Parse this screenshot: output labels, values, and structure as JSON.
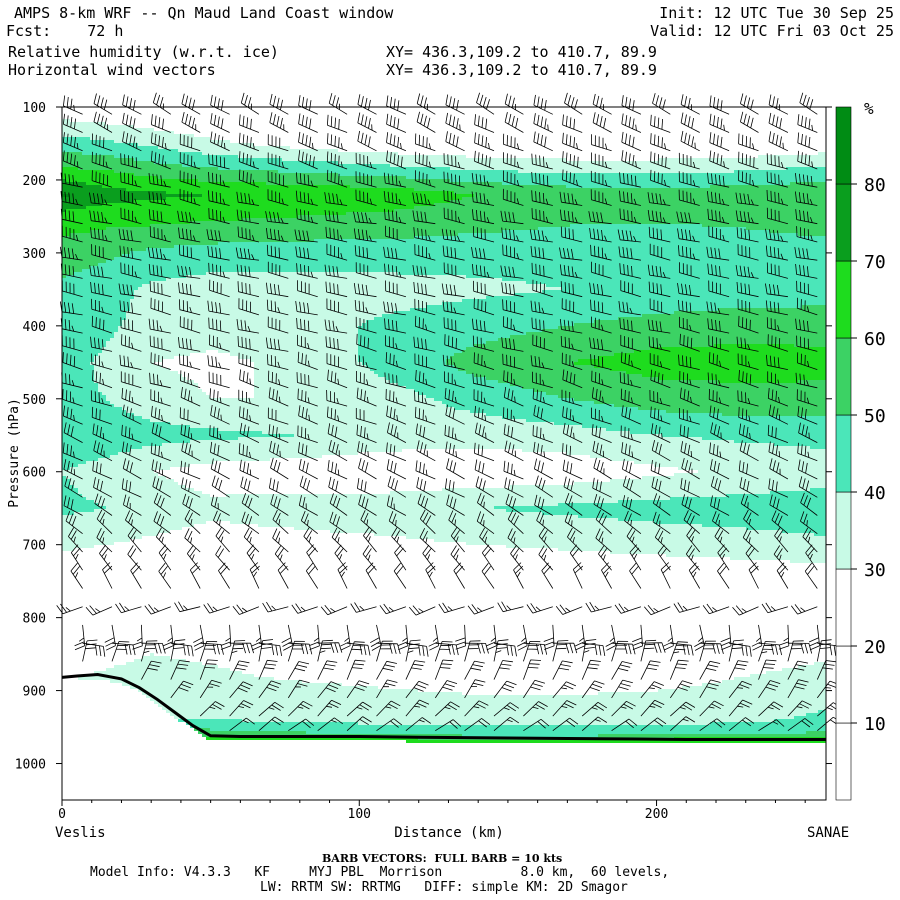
{
  "header": {
    "title": "AMPS 8-km WRF -- Qn Maud Land Coast window",
    "forecast": "Fcst:    72 h",
    "field1": "Relative humidity (w.r.t. ice)",
    "field2": "Horizontal wind vectors",
    "xy1": "XY= 436.3,109.2 to 410.7, 89.9",
    "xy2": "XY= 436.3,109.2 to 410.7, 89.9",
    "init": "Init: 12 UTC Tue 30 Sep 25",
    "valid": "Valid: 12 UTC Fri 03 Oct 25"
  },
  "footer": {
    "barb_note": "BARB VECTORS:  FULL BARB = 10 kts",
    "model_info": "Model Info: V4.3.3   KF     MYJ PBL  Morrison          8.0 km,  60 levels,",
    "physics": "LW: RRTM SW: RRTMG   DIFF: simple KM: 2D Smagor"
  },
  "chart_data": {
    "type": "heatmap",
    "subtype": "cross-section: filled contours of relative humidity with wind barbs",
    "xlabel": "Distance (km)",
    "ylabel": "Pressure (hPa)",
    "x_start_label": "Veslis",
    "x_end_label": "SANAE",
    "xlim": [
      0,
      257
    ],
    "ylim": [
      1050,
      100
    ],
    "x_ticks": [
      0,
      100,
      200
    ],
    "y_ticks": [
      100,
      200,
      300,
      400,
      500,
      600,
      700,
      800,
      900,
      1000
    ],
    "colorbar": {
      "unit": "%",
      "levels": [
        10,
        20,
        30,
        40,
        50,
        60,
        70,
        80
      ],
      "colors": [
        "#ffffff",
        "#ffffff",
        "#ffffff",
        "#c8fae6",
        "#4be6b9",
        "#3cd264",
        "#1edc1e",
        "#0a9e1e",
        "#008c14"
      ]
    },
    "rh_field": {
      "x_nodes": [
        0,
        15,
        30,
        50,
        80,
        110,
        140,
        170,
        200,
        230,
        257
      ],
      "rows": [
        {
          "p": 100,
          "rh": [
            22,
            20,
            18,
            16,
            15,
            14,
            14,
            14,
            14,
            15,
            15
          ]
        },
        {
          "p": 150,
          "rh": [
            45,
            42,
            38,
            32,
            26,
            22,
            20,
            19,
            19,
            20,
            22
          ]
        },
        {
          "p": 180,
          "rh": [
            58,
            57,
            52,
            48,
            44,
            40,
            36,
            34,
            34,
            36,
            40
          ]
        },
        {
          "p": 220,
          "rh": [
            82,
            74,
            72,
            70,
            68,
            66,
            60,
            56,
            55,
            56,
            58
          ]
        },
        {
          "p": 250,
          "rh": [
            66,
            64,
            64,
            62,
            60,
            58,
            55,
            52,
            51,
            52,
            54
          ]
        },
        {
          "p": 300,
          "rh": [
            55,
            52,
            48,
            46,
            45,
            45,
            44,
            44,
            45,
            46,
            47
          ]
        },
        {
          "p": 350,
          "rh": [
            48,
            44,
            38,
            35,
            35,
            36,
            38,
            40,
            42,
            44,
            45
          ]
        },
        {
          "p": 400,
          "rh": [
            48,
            42,
            36,
            34,
            36,
            42,
            46,
            50,
            54,
            56,
            56
          ]
        },
        {
          "p": 450,
          "rh": [
            44,
            38,
            30,
            28,
            32,
            44,
            54,
            60,
            64,
            64,
            63
          ]
        },
        {
          "p": 500,
          "rh": [
            42,
            40,
            34,
            30,
            30,
            36,
            44,
            50,
            55,
            57,
            57
          ]
        },
        {
          "p": 550,
          "rh": [
            48,
            46,
            44,
            42,
            40,
            36,
            34,
            36,
            40,
            42,
            43
          ]
        },
        {
          "p": 600,
          "rh": [
            40,
            36,
            30,
            26,
            24,
            22,
            22,
            24,
            28,
            32,
            35
          ]
        },
        {
          "p": 650,
          "rh": [
            42,
            40,
            36,
            32,
            34,
            36,
            40,
            42,
            44,
            45,
            46
          ]
        },
        {
          "p": 700,
          "rh": [
            32,
            30,
            28,
            26,
            27,
            28,
            30,
            32,
            34,
            36,
            38
          ]
        },
        {
          "p": 760,
          "rh": [
            18,
            17,
            16,
            15,
            15,
            15,
            15,
            16,
            17,
            18,
            19
          ]
        },
        {
          "p": 820,
          "rh": [
            16,
            18,
            20,
            20,
            18,
            16,
            15,
            15,
            16,
            18,
            20
          ]
        },
        {
          "p": 850,
          "rh": [
            20,
            26,
            30,
            28,
            24,
            20,
            18,
            18,
            20,
            24,
            28
          ]
        },
        {
          "p": 880,
          "rh": [
            28,
            32,
            34,
            32,
            28,
            26,
            24,
            24,
            26,
            30,
            34
          ]
        },
        {
          "p": 910,
          "rh": [
            34,
            34,
            36,
            38,
            36,
            33,
            31,
            31,
            32,
            34,
            38
          ]
        },
        {
          "p": 940,
          "rh": [
            40,
            40,
            40,
            40,
            38,
            36,
            35,
            35,
            36,
            38,
            42
          ]
        },
        {
          "p": 960,
          "rh": [
            55,
            55,
            55,
            55,
            52,
            48,
            46,
            46,
            47,
            49,
            52
          ]
        },
        {
          "p": 972,
          "rh": [
            70,
            70,
            70,
            70,
            72,
            74,
            74,
            74,
            74,
            74,
            74
          ]
        }
      ]
    },
    "terrain": {
      "x": [
        0,
        5,
        12,
        20,
        26,
        32,
        38,
        44,
        50,
        60,
        80,
        100,
        120,
        150,
        180,
        210,
        240,
        257
      ],
      "p": [
        882,
        880,
        878,
        884,
        896,
        912,
        930,
        948,
        962,
        963,
        963,
        963,
        964,
        965,
        966,
        967,
        967,
        967
      ]
    },
    "wind_field": {
      "columns": 26,
      "levels": [
        110,
        135,
        160,
        185,
        210,
        235,
        260,
        285,
        310,
        335,
        360,
        385,
        410,
        435,
        460,
        485,
        510,
        535,
        560,
        585,
        610,
        635,
        660,
        685,
        710,
        735,
        760,
        785,
        810,
        835,
        860,
        885,
        910,
        935,
        955
      ],
      "dir_points": [
        {
          "p": 100,
          "dir": 300
        },
        {
          "p": 250,
          "dir": 280
        },
        {
          "p": 450,
          "dir": 285
        },
        {
          "p": 650,
          "dir": 300
        },
        {
          "p": 760,
          "dir": 330
        },
        {
          "p": 860,
          "dir": 15
        },
        {
          "p": 960,
          "dir": 55
        }
      ],
      "speed_points": [
        {
          "p": 100,
          "kts": 35
        },
        {
          "p": 200,
          "kts": 45
        },
        {
          "p": 300,
          "kts": 40
        },
        {
          "p": 450,
          "kts": 35
        },
        {
          "p": 600,
          "kts": 30
        },
        {
          "p": 760,
          "kts": 20
        },
        {
          "p": 860,
          "kts": 30
        },
        {
          "p": 930,
          "kts": 25
        },
        {
          "p": 960,
          "kts": 15
        }
      ]
    }
  }
}
